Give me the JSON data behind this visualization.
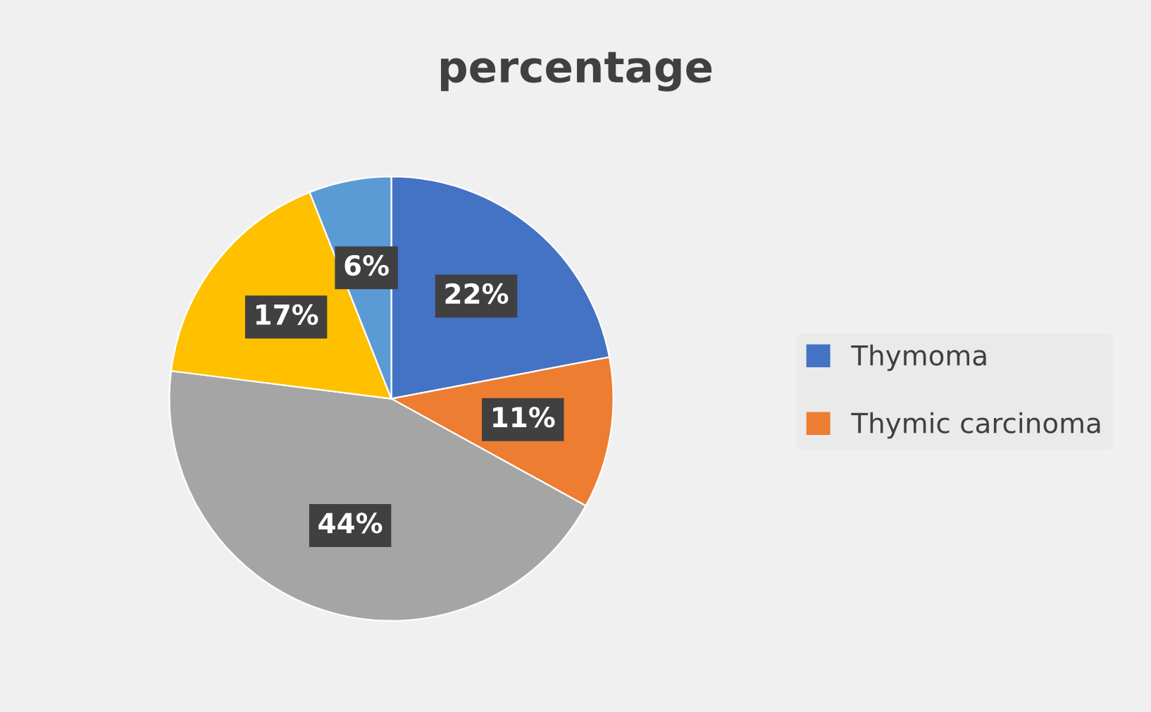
{
  "chart_data": {
    "type": "pie",
    "title": "percentage",
    "categories": [
      "Thymoma",
      "Thymic carcinoma",
      null,
      null,
      null
    ],
    "values": [
      22,
      11,
      44,
      17,
      6
    ],
    "colors": [
      "#4472c4",
      "#ed7d31",
      "#a5a5a5",
      "#ffc000",
      "#5b9bd5"
    ],
    "value_labels": [
      "22%",
      "11%",
      "44%",
      "17%",
      "6%"
    ],
    "legend": "right"
  }
}
